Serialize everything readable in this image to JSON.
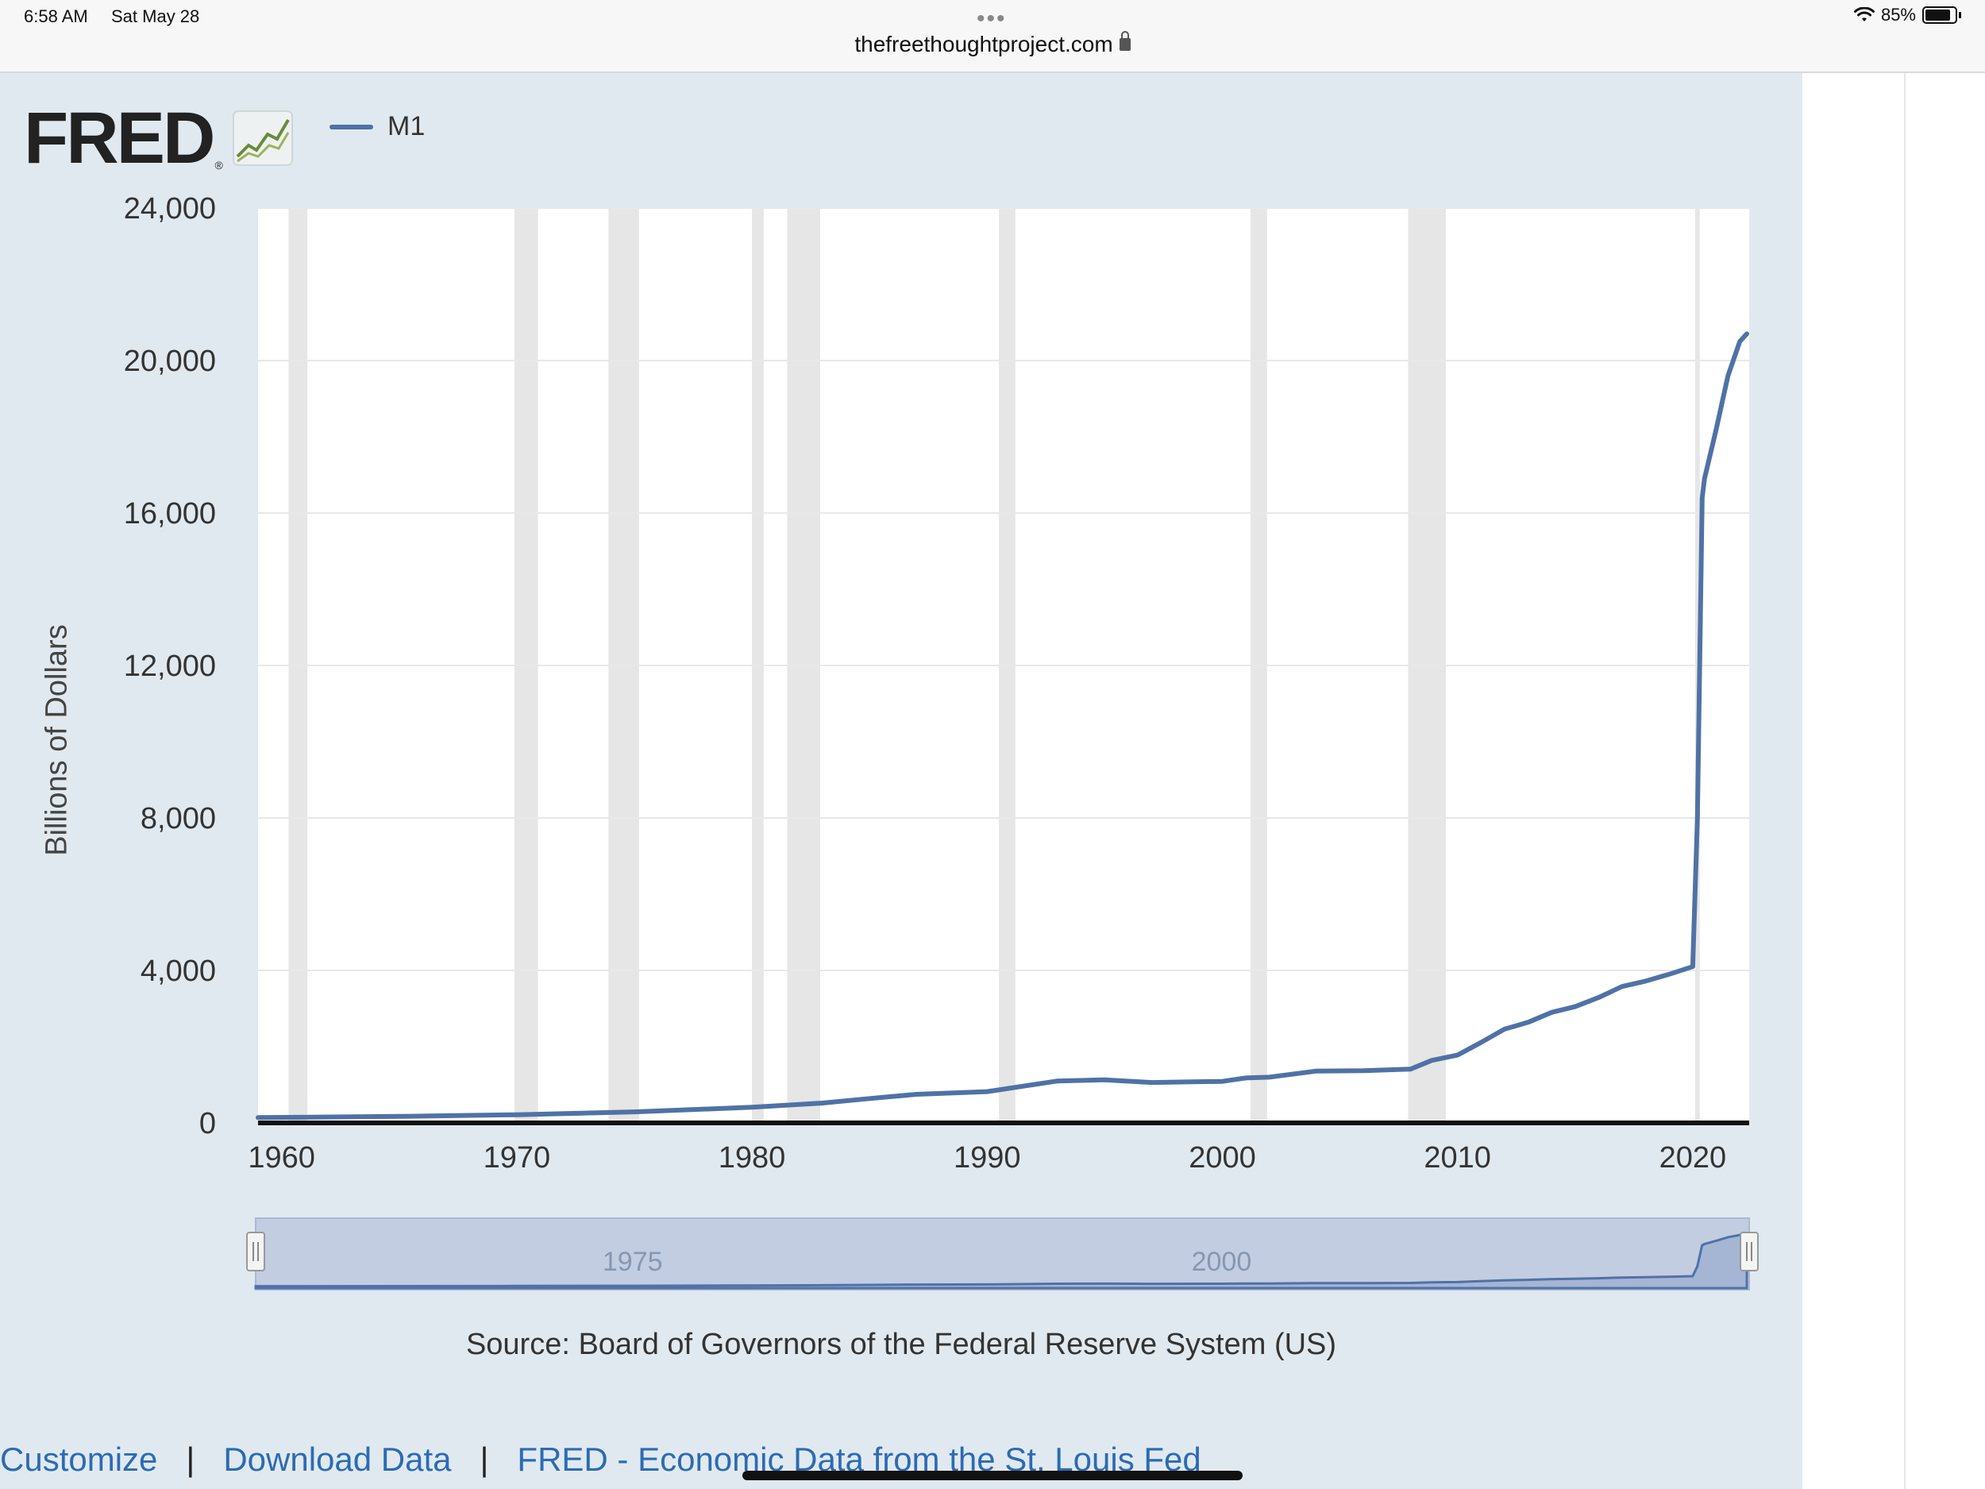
{
  "status_bar": {
    "time": "6:58 AM",
    "date": "Sat May 28",
    "battery": "85%",
    "battery_level": 0.85
  },
  "browser": {
    "url": "thefreethoughtproject.com"
  },
  "fred": {
    "logo_text": "FRED",
    "logo_mark": "®",
    "legend_label": "M1",
    "source": "Source: Board of Governors of the Federal Reserve System (US)",
    "links": [
      "Customize",
      "Download Data",
      "FRED - Economic Data from the St. Louis Fed"
    ]
  },
  "colors": {
    "series": "#4f72a6",
    "panel_bg": "#e1e9f0",
    "recession": "#e6e6e6",
    "link": "#2b6bb4"
  },
  "icons": {
    "logo_chart": "fred-chart-icon",
    "lock": "lock-icon",
    "wifi": "wifi-icon",
    "battery": "battery-icon"
  },
  "chart_data": {
    "type": "line",
    "ylabel": "Billions of Dollars",
    "xlabel": "",
    "title": "",
    "ylim": [
      0,
      24000
    ],
    "xlim": [
      1959,
      2022.4
    ],
    "y_ticks": [
      "0",
      "4,000",
      "8,000",
      "12,000",
      "16,000",
      "20,000",
      "24,000"
    ],
    "y_tick_values": [
      0,
      4000,
      8000,
      12000,
      16000,
      20000,
      24000
    ],
    "x_ticks": [
      "1960",
      "1970",
      "1980",
      "1990",
      "2000",
      "2010",
      "2020"
    ],
    "x_tick_values": [
      1960,
      1970,
      1980,
      1990,
      2000,
      2010,
      2020
    ],
    "grid": true,
    "legend_position": "top-left",
    "recessions": [
      [
        1960.3,
        1961.1
      ],
      [
        1969.9,
        1970.9
      ],
      [
        1973.9,
        1975.2
      ],
      [
        1980.0,
        1980.5
      ],
      [
        1981.5,
        1982.9
      ],
      [
        1990.5,
        1991.2
      ],
      [
        2001.2,
        2001.9
      ],
      [
        2007.9,
        2009.5
      ],
      [
        2020.1,
        2020.3
      ]
    ],
    "series": [
      {
        "name": "M1",
        "x": [
          1959,
          1965,
          1970,
          1975,
          1980,
          1983,
          1985,
          1987,
          1990,
          1993,
          1995,
          1997,
          2000,
          2001,
          2002,
          2004,
          2006,
          2008,
          2008.9,
          2010,
          2011,
          2012,
          2013,
          2014,
          2015,
          2016,
          2017,
          2018,
          2019,
          2020.0,
          2020.2,
          2020.4,
          2020.5,
          2021.0,
          2021.5,
          2022.0,
          2022.3
        ],
        "y": [
          140,
          170,
          215,
          290,
          410,
          520,
          640,
          750,
          820,
          1100,
          1130,
          1060,
          1090,
          1180,
          1200,
          1360,
          1370,
          1410,
          1640,
          1780,
          2110,
          2460,
          2640,
          2900,
          3050,
          3290,
          3580,
          3720,
          3900,
          4100,
          8000,
          16400,
          16900,
          18200,
          19600,
          20500,
          20700
        ]
      }
    ],
    "navigator": {
      "labels": [
        "1975",
        "2000"
      ],
      "label_values": [
        1975,
        2000
      ]
    }
  }
}
